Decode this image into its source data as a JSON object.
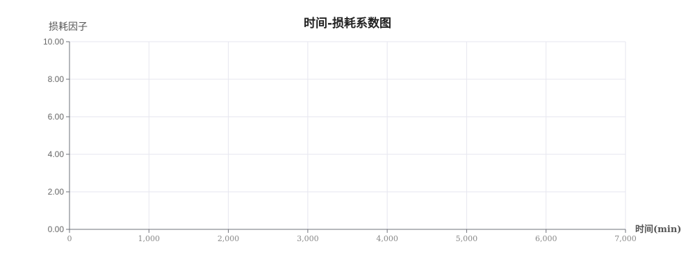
{
  "chart_data": {
    "type": "line",
    "title": "时间-损耗系数图",
    "xlabel": "时间(min)",
    "ylabel": "损耗因子",
    "x_ticks": [
      "0",
      "1,000",
      "2,000",
      "3,000",
      "4,000",
      "5,000",
      "6,000",
      "7,000"
    ],
    "y_ticks": [
      "0.00",
      "2.00",
      "4.00",
      "6.00",
      "8.00",
      "10.00"
    ],
    "xlim": [
      0,
      7000
    ],
    "ylim": [
      0,
      10
    ],
    "grid": true,
    "series": []
  }
}
